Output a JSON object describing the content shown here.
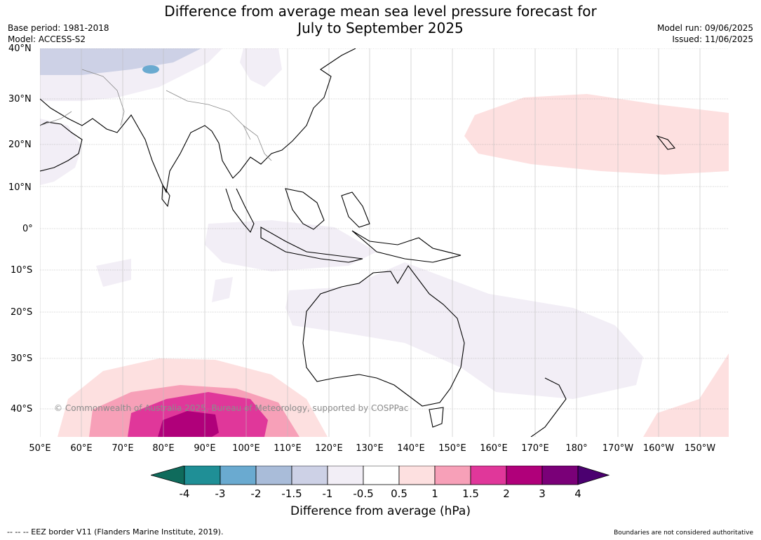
{
  "title_line1": "Difference from average mean sea level pressure forecast for",
  "title_line2": "July to September 2025",
  "base_period": "Base period: 1981-2018",
  "model": "Model: ACCESS-S2",
  "model_run": "Model run: 09/06/2025",
  "issued": "Issued: 11/06/2025",
  "lat_labels": [
    "40°N",
    "30°N",
    "20°N",
    "10°N",
    "0°",
    "10°S",
    "20°S",
    "30°S",
    "40°S"
  ],
  "lon_labels": [
    "50°E",
    "60°E",
    "70°E",
    "80°E",
    "90°E",
    "100°E",
    "110°E",
    "120°E",
    "130°E",
    "140°E",
    "150°E",
    "160°E",
    "170°E",
    "180°",
    "170°W",
    "160°W",
    "150°W"
  ],
  "copyright": "© Commonwealth of Australia 2025, Bureau of Meteorology, supported by COSPPac",
  "legend": {
    "ticks": [
      "-4",
      "-3",
      "-2",
      "-1.5",
      "-1",
      "-0.5",
      "0.5",
      "1",
      "1.5",
      "2",
      "3",
      "4"
    ],
    "colors": [
      "#0f6b5c",
      "#1f8f96",
      "#6aaad0",
      "#a9bcd9",
      "#cdd1e6",
      "#f2eef6",
      "#ffffff",
      "#fde0e0",
      "#f7a0b8",
      "#e0379a",
      "#b0007a",
      "#7a0078",
      "#4b0070"
    ],
    "label": "Difference from average (hPa)"
  },
  "footer_left": "--  --  -- EEZ border V11 (Flanders Marine Institute, 2019).",
  "footer_right": "Boundaries are not considered authoritative"
}
